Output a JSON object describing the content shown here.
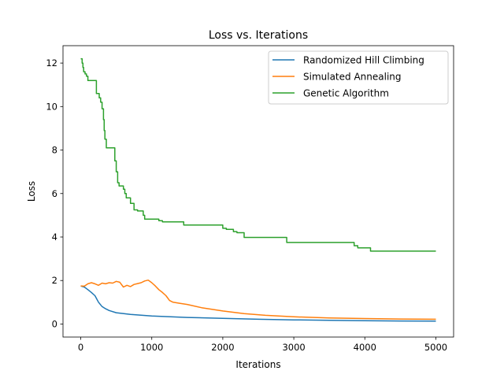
{
  "chart_data": {
    "type": "line",
    "title": "Loss vs. Iterations",
    "xlabel": "Iterations",
    "ylabel": "Loss",
    "xlim": [
      -250,
      5250
    ],
    "ylim": [
      -0.6,
      12.8
    ],
    "xticks": [
      0,
      1000,
      2000,
      3000,
      4000,
      5000
    ],
    "yticks": [
      0,
      2,
      4,
      6,
      8,
      10,
      12
    ],
    "xtick_labels": [
      "0",
      "1000",
      "2000",
      "3000",
      "4000",
      "5000"
    ],
    "ytick_labels": [
      "0",
      "2",
      "4",
      "6",
      "8",
      "10",
      "12"
    ],
    "grid": false,
    "legend_position": "top-right",
    "series": [
      {
        "name": "Randomized Hill Climbing",
        "color": "#1f77b4",
        "step": false,
        "x": [
          0,
          50,
          100,
          150,
          200,
          250,
          300,
          350,
          400,
          500,
          700,
          1000,
          1500,
          2000,
          2500,
          3000,
          3500,
          4000,
          4500,
          5000
        ],
        "y": [
          1.75,
          1.7,
          1.58,
          1.45,
          1.3,
          1.0,
          0.8,
          0.7,
          0.62,
          0.52,
          0.44,
          0.37,
          0.3,
          0.26,
          0.22,
          0.19,
          0.17,
          0.15,
          0.14,
          0.13
        ]
      },
      {
        "name": "Simulated Annealing",
        "color": "#ff7f0e",
        "step": false,
        "x": [
          0,
          50,
          100,
          150,
          200,
          250,
          300,
          350,
          400,
          450,
          500,
          550,
          600,
          650,
          700,
          750,
          800,
          850,
          900,
          950,
          1000,
          1050,
          1100,
          1150,
          1200,
          1250,
          1300,
          1400,
          1500,
          1700,
          2000,
          2300,
          2600,
          3000,
          3500,
          4000,
          4500,
          5000
        ],
        "y": [
          1.75,
          1.74,
          1.85,
          1.9,
          1.85,
          1.78,
          1.88,
          1.85,
          1.9,
          1.88,
          1.96,
          1.92,
          1.7,
          1.78,
          1.72,
          1.82,
          1.86,
          1.9,
          1.98,
          2.02,
          1.9,
          1.75,
          1.58,
          1.45,
          1.3,
          1.08,
          1.0,
          0.95,
          0.9,
          0.75,
          0.6,
          0.48,
          0.4,
          0.33,
          0.28,
          0.25,
          0.23,
          0.22
        ]
      },
      {
        "name": "Genetic Algorithm",
        "color": "#2ca02c",
        "step": true,
        "x": [
          0,
          20,
          30,
          40,
          60,
          80,
          100,
          150,
          220,
          260,
          280,
          300,
          320,
          330,
          340,
          360,
          480,
          500,
          520,
          540,
          600,
          620,
          640,
          700,
          750,
          800,
          880,
          900,
          1000,
          1100,
          1150,
          1450,
          1800,
          2000,
          2050,
          2150,
          2200,
          2300,
          2900,
          3000,
          3800,
          3850,
          3900,
          4080,
          4200,
          5000
        ],
        "y": [
          12.2,
          12.0,
          11.8,
          11.6,
          11.5,
          11.4,
          11.2,
          11.2,
          10.6,
          10.4,
          10.2,
          9.9,
          9.4,
          8.9,
          8.5,
          8.1,
          7.5,
          7.0,
          6.5,
          6.35,
          6.2,
          6.0,
          5.8,
          5.55,
          5.25,
          5.2,
          5.0,
          4.82,
          4.82,
          4.75,
          4.7,
          4.55,
          4.55,
          4.4,
          4.35,
          4.25,
          4.2,
          3.98,
          3.75,
          3.75,
          3.75,
          3.6,
          3.5,
          3.35,
          3.35,
          3.35
        ]
      }
    ]
  }
}
